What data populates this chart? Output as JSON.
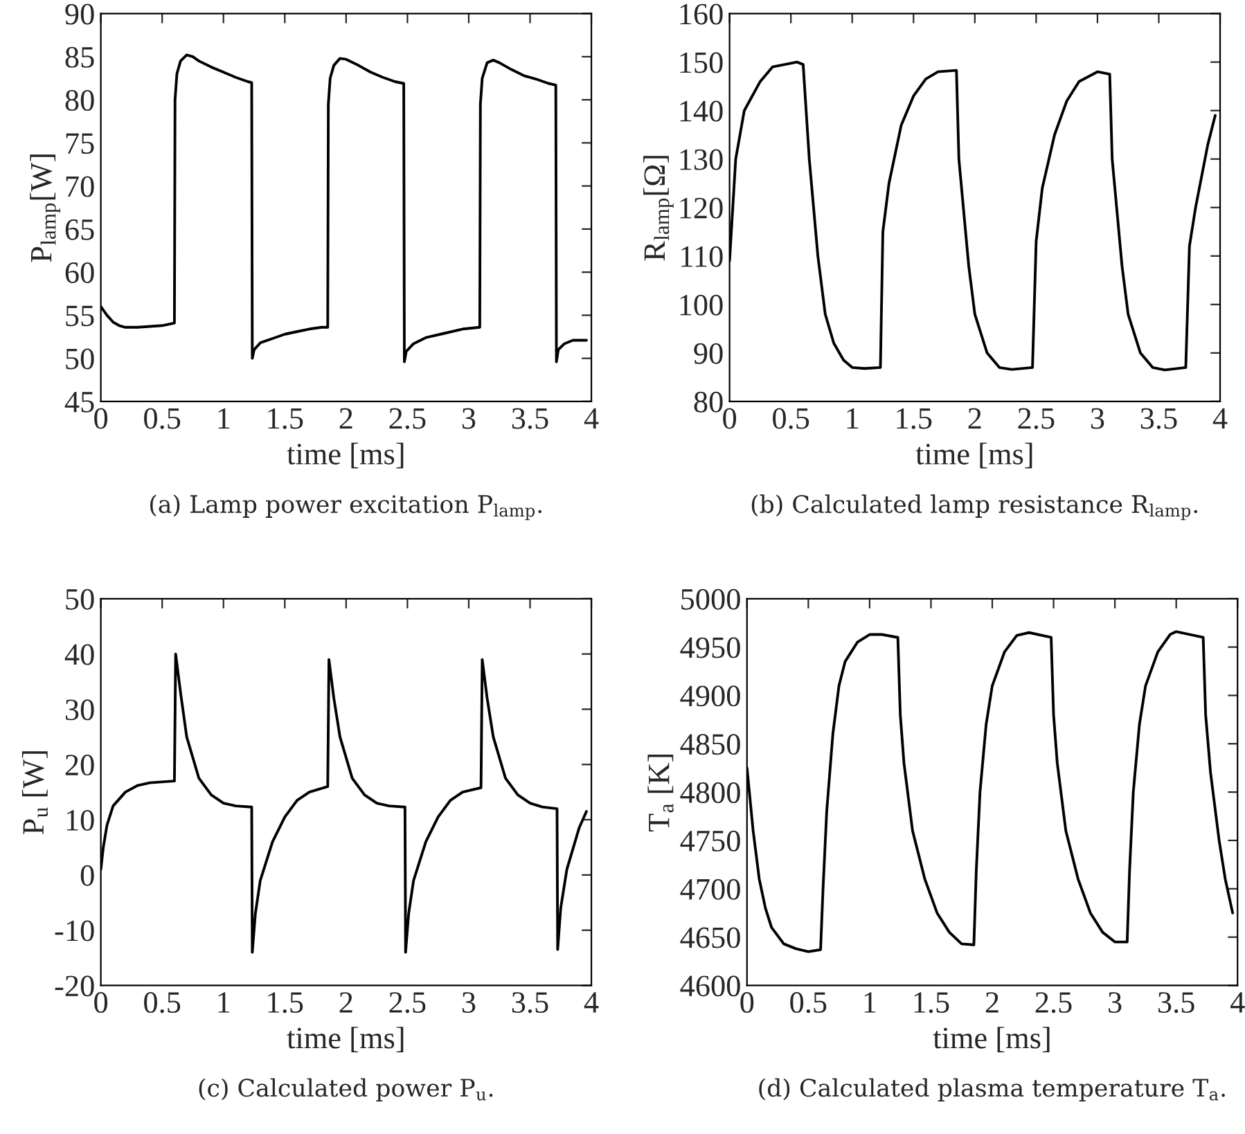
{
  "chart_data": [
    {
      "type": "line",
      "title": "(a) Lamp power excitation P$_{lamp}$.",
      "xlabel": "time [ms]",
      "ylabel": "P$_{lamp}$[W]",
      "xlim": [
        0,
        4
      ],
      "xticks": [
        0,
        0.5,
        1,
        1.5,
        2,
        2.5,
        3,
        3.5,
        4
      ],
      "ylim": [
        45,
        90
      ],
      "yticks": [
        45,
        50,
        55,
        60,
        65,
        70,
        75,
        80,
        85,
        90
      ],
      "grid": false,
      "legend": false,
      "series": [
        {
          "color": "#000000",
          "x": [
            0,
            0.05,
            0.1,
            0.15,
            0.2,
            0.3,
            0.4,
            0.5,
            0.6,
            0.605,
            0.62,
            0.65,
            0.7,
            0.75,
            0.8,
            0.9,
            1.0,
            1.1,
            1.2,
            1.23,
            1.235,
            1.25,
            1.3,
            1.4,
            1.5,
            1.6,
            1.7,
            1.8,
            1.85,
            1.855,
            1.87,
            1.9,
            1.95,
            2.0,
            2.1,
            2.2,
            2.3,
            2.4,
            2.47,
            2.475,
            2.49,
            2.55,
            2.65,
            2.8,
            2.95,
            3.09,
            3.095,
            3.11,
            3.15,
            3.2,
            3.25,
            3.35,
            3.45,
            3.55,
            3.65,
            3.71,
            3.715,
            3.73,
            3.78,
            3.85,
            3.96
          ],
          "values": [
            56,
            55,
            54.2,
            53.8,
            53.6,
            53.6,
            53.7,
            53.8,
            54.1,
            80,
            83,
            84.5,
            85.2,
            85,
            84.5,
            83.8,
            83.2,
            82.6,
            82.1,
            82,
            50,
            51,
            51.8,
            52.3,
            52.8,
            53.1,
            53.4,
            53.6,
            53.6,
            79.5,
            82.5,
            84,
            84.8,
            84.7,
            84,
            83.2,
            82.6,
            82.1,
            81.9,
            49.6,
            50.8,
            51.7,
            52.4,
            52.9,
            53.4,
            53.6,
            79.5,
            82.5,
            84.3,
            84.6,
            84.3,
            83.5,
            82.8,
            82.4,
            81.9,
            81.7,
            49.6,
            51,
            51.7,
            52.1,
            52.1
          ]
        }
      ]
    },
    {
      "type": "line",
      "title": "(b) Calculated lamp resistance R$_{lamp}$.",
      "xlabel": "time [ms]",
      "ylabel": "R$_{lamp}$[Ω]",
      "xlim": [
        0,
        4
      ],
      "xticks": [
        0,
        0.5,
        1,
        1.5,
        2,
        2.5,
        3,
        3.5,
        4
      ],
      "ylim": [
        80,
        160
      ],
      "yticks": [
        80,
        90,
        100,
        110,
        120,
        130,
        140,
        150,
        160
      ],
      "grid": false,
      "legend": false,
      "series": [
        {
          "color": "#000000",
          "x": [
            0,
            0.05,
            0.12,
            0.25,
            0.35,
            0.55,
            0.6,
            0.65,
            0.72,
            0.78,
            0.85,
            0.93,
            1.0,
            1.1,
            1.23,
            1.25,
            1.3,
            1.4,
            1.5,
            1.6,
            1.7,
            1.85,
            1.87,
            1.95,
            2.0,
            2.1,
            2.2,
            2.3,
            2.47,
            2.5,
            2.55,
            2.65,
            2.75,
            2.85,
            3.0,
            3.1,
            3.12,
            3.2,
            3.25,
            3.35,
            3.45,
            3.55,
            3.72,
            3.75,
            3.8,
            3.9,
            3.96
          ],
          "values": [
            109,
            130,
            140,
            146,
            149,
            150,
            149.5,
            130,
            110,
            98,
            92,
            88.5,
            87,
            86.8,
            87,
            115,
            125,
            137,
            143,
            146.5,
            148,
            148.3,
            130,
            108,
            98,
            90,
            87,
            86.6,
            87,
            113,
            124,
            135,
            142,
            146,
            148,
            147.5,
            130,
            108,
            98,
            90,
            87,
            86.5,
            87,
            112,
            120,
            133,
            139
          ]
        }
      ]
    },
    {
      "type": "line",
      "title": "(c) Calculated power P$_{u}$.",
      "xlabel": "time [ms]",
      "ylabel": "P$_{u}$ [W]",
      "xlim": [
        0,
        4
      ],
      "xticks": [
        0,
        0.5,
        1,
        1.5,
        2,
        2.5,
        3,
        3.5,
        4
      ],
      "ylim": [
        -20,
        50
      ],
      "yticks": [
        -20,
        -10,
        0,
        10,
        20,
        30,
        40,
        50
      ],
      "grid": false,
      "legend": false,
      "series": [
        {
          "color": "#000000",
          "x": [
            0,
            0.02,
            0.05,
            0.1,
            0.2,
            0.3,
            0.4,
            0.6,
            0.61,
            0.65,
            0.7,
            0.8,
            0.9,
            1.0,
            1.1,
            1.23,
            1.235,
            1.26,
            1.3,
            1.4,
            1.5,
            1.6,
            1.7,
            1.85,
            1.86,
            1.9,
            1.95,
            2.05,
            2.15,
            2.25,
            2.35,
            2.48,
            2.485,
            2.51,
            2.55,
            2.65,
            2.75,
            2.85,
            2.95,
            3.1,
            3.11,
            3.15,
            3.2,
            3.3,
            3.4,
            3.5,
            3.6,
            3.72,
            3.725,
            3.75,
            3.8,
            3.9,
            3.96
          ],
          "values": [
            1,
            5,
            9,
            12.5,
            15,
            16.2,
            16.7,
            17,
            40,
            33,
            25,
            17.5,
            14.5,
            13,
            12.5,
            12.3,
            -14,
            -7,
            -1,
            6,
            10.5,
            13.5,
            15,
            16,
            39,
            32,
            25,
            17.5,
            14.5,
            13,
            12.5,
            12.3,
            -14,
            -7,
            -1,
            6,
            10.5,
            13.5,
            15,
            15.8,
            39,
            32,
            25,
            17.5,
            14.5,
            13,
            12.3,
            12,
            -13.5,
            -6,
            1,
            8.5,
            11.5
          ]
        }
      ]
    },
    {
      "type": "line",
      "title": "(d) Calculated plasma temperature T$_{a}$.",
      "xlabel": "time [ms]",
      "ylabel": "T$_{a}$ [K]",
      "xlim": [
        0,
        4
      ],
      "xticks": [
        0,
        0.5,
        1,
        1.5,
        2,
        2.5,
        3,
        3.5,
        4
      ],
      "ylim": [
        4600,
        5000
      ],
      "yticks": [
        4600,
        4650,
        4700,
        4750,
        4800,
        4850,
        4900,
        4950,
        5000
      ],
      "grid": false,
      "legend": false,
      "series": [
        {
          "color": "#000000",
          "x": [
            0,
            0.05,
            0.1,
            0.15,
            0.2,
            0.3,
            0.4,
            0.5,
            0.6,
            0.62,
            0.65,
            0.7,
            0.75,
            0.8,
            0.9,
            1.0,
            1.1,
            1.23,
            1.25,
            1.28,
            1.35,
            1.45,
            1.55,
            1.65,
            1.75,
            1.85,
            1.87,
            1.9,
            1.95,
            2.0,
            2.1,
            2.2,
            2.3,
            2.48,
            2.5,
            2.53,
            2.6,
            2.7,
            2.8,
            2.9,
            3.0,
            3.1,
            3.12,
            3.15,
            3.2,
            3.25,
            3.35,
            3.45,
            3.5,
            3.72,
            3.74,
            3.78,
            3.85,
            3.9,
            3.96
          ],
          "values": [
            4825,
            4760,
            4710,
            4680,
            4660,
            4643,
            4638,
            4635,
            4637,
            4700,
            4780,
            4860,
            4910,
            4935,
            4955,
            4963,
            4963,
            4960,
            4880,
            4830,
            4760,
            4710,
            4675,
            4655,
            4643,
            4642,
            4720,
            4800,
            4870,
            4910,
            4945,
            4962,
            4965,
            4960,
            4880,
            4830,
            4760,
            4710,
            4675,
            4655,
            4645,
            4645,
            4720,
            4800,
            4870,
            4910,
            4945,
            4963,
            4966,
            4960,
            4880,
            4820,
            4750,
            4710,
            4675
          ]
        }
      ]
    }
  ]
}
